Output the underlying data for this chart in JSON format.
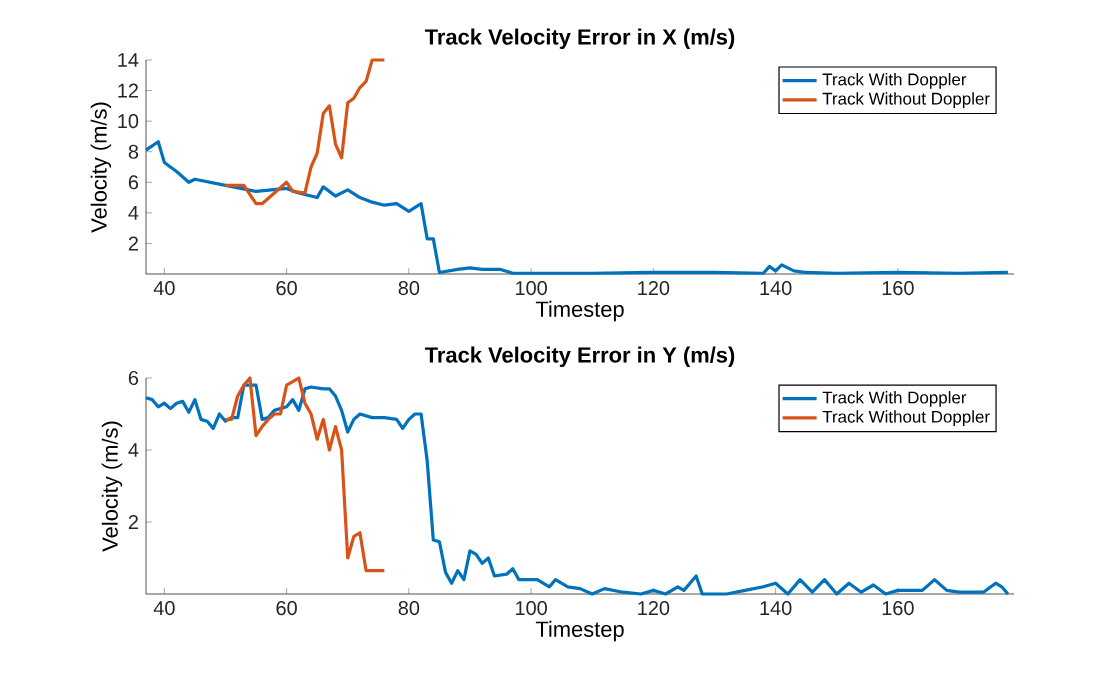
{
  "chart_data": [
    {
      "type": "line",
      "title": "Track Velocity Error in X (m/s)",
      "xlabel": "Timestep",
      "ylabel": "Velocity (m/s)",
      "xlim": [
        37,
        179
      ],
      "ylim": [
        0,
        14
      ],
      "xticks": [
        40,
        60,
        80,
        100,
        120,
        140,
        160
      ],
      "yticks": [
        2,
        4,
        6,
        8,
        10,
        12,
        14
      ],
      "legend": "top right",
      "line_style": "solid",
      "series": [
        {
          "name": "Track With Doppler",
          "color": "#0072bd",
          "x": [
            37,
            39,
            40,
            42,
            44,
            45,
            50,
            55,
            60,
            62,
            65,
            66,
            68,
            70,
            72,
            74,
            76,
            78,
            80,
            82,
            83,
            84,
            85,
            88,
            90,
            92,
            95,
            97,
            100,
            110,
            120,
            130,
            138,
            139,
            140,
            141,
            143,
            145,
            150,
            160,
            170,
            178
          ],
          "values": [
            8.1,
            8.65,
            7.3,
            6.7,
            6.0,
            6.2,
            5.8,
            5.4,
            5.6,
            5.3,
            5.0,
            5.7,
            5.1,
            5.5,
            5.0,
            4.7,
            4.5,
            4.6,
            4.1,
            4.6,
            2.3,
            2.3,
            0.1,
            0.3,
            0.4,
            0.3,
            0.3,
            0.05,
            0.05,
            0.05,
            0.1,
            0.1,
            0.05,
            0.5,
            0.2,
            0.6,
            0.2,
            0.1,
            0.05,
            0.1,
            0.05,
            0.1
          ]
        },
        {
          "name": "Track Without Doppler",
          "color": "#d95319",
          "x": [
            50,
            53,
            55,
            56,
            58,
            60,
            61,
            63,
            64,
            65,
            66,
            67,
            68,
            69,
            70,
            71,
            72,
            73,
            74,
            76
          ],
          "values": [
            5.8,
            5.8,
            4.6,
            4.6,
            5.3,
            6.0,
            5.4,
            5.3,
            7.0,
            7.9,
            10.5,
            11.0,
            8.5,
            7.6,
            11.2,
            11.5,
            12.2,
            12.6,
            14,
            14
          ]
        }
      ]
    },
    {
      "type": "line",
      "title": "Track Velocity Error in Y (m/s)",
      "xlabel": "Timestep",
      "ylabel": "Velocity (m/s)",
      "xlim": [
        37,
        179
      ],
      "ylim": [
        0,
        6
      ],
      "xticks": [
        40,
        60,
        80,
        100,
        120,
        140,
        160
      ],
      "yticks": [
        2,
        4,
        6
      ],
      "legend": "top right",
      "line_style": "solid",
      "series": [
        {
          "name": "Track With Doppler",
          "color": "#0072bd",
          "x": [
            37,
            38,
            39,
            40,
            41,
            42,
            43,
            44,
            45,
            46,
            47,
            48,
            49,
            50,
            51,
            52,
            53,
            55,
            56,
            57,
            58,
            60,
            61,
            62,
            63,
            64,
            66,
            67,
            68,
            69,
            70,
            71,
            72,
            74,
            76,
            78,
            79,
            80,
            81,
            82,
            83,
            84,
            85,
            86,
            87,
            88,
            89,
            90,
            91,
            92,
            93,
            94,
            96,
            97,
            98,
            100,
            101,
            103,
            104,
            106,
            108,
            110,
            112,
            115,
            118,
            120,
            122,
            124,
            125,
            127,
            128,
            132,
            135,
            138,
            140,
            142,
            144,
            146,
            148,
            150,
            152,
            154,
            156,
            158,
            160,
            164,
            166,
            168,
            170,
            174,
            176,
            177,
            178
          ],
          "values": [
            5.45,
            5.4,
            5.2,
            5.3,
            5.15,
            5.3,
            5.35,
            5.05,
            5.4,
            4.85,
            4.8,
            4.6,
            5.0,
            4.8,
            4.9,
            4.9,
            5.8,
            5.8,
            4.85,
            4.9,
            5.1,
            5.2,
            5.4,
            5.1,
            5.7,
            5.75,
            5.7,
            5.7,
            5.5,
            5.1,
            4.5,
            4.85,
            5.0,
            4.9,
            4.9,
            4.85,
            4.6,
            4.85,
            5.0,
            5.0,
            3.7,
            1.5,
            1.45,
            0.6,
            0.3,
            0.65,
            0.4,
            1.2,
            1.1,
            0.85,
            1.0,
            0.5,
            0.55,
            0.7,
            0.4,
            0.4,
            0.4,
            0.2,
            0.4,
            0.2,
            0.15,
            0.0,
            0.15,
            0.05,
            0.0,
            0.1,
            0.0,
            0.2,
            0.1,
            0.5,
            0.0,
            0.0,
            0.1,
            0.2,
            0.3,
            0.0,
            0.4,
            0.05,
            0.4,
            0.0,
            0.3,
            0.05,
            0.25,
            0.0,
            0.1,
            0.1,
            0.4,
            0.1,
            0.05,
            0.05,
            0.3,
            0.2,
            0.0
          ]
        },
        {
          "name": "Track Without Doppler",
          "color": "#d95319",
          "x": [
            50,
            51,
            52,
            53,
            54,
            55,
            56,
            57,
            58,
            59,
            60,
            61,
            62,
            63,
            64,
            65,
            66,
            67,
            68,
            69,
            70,
            71,
            72,
            73,
            74,
            76
          ],
          "values": [
            4.85,
            4.85,
            5.5,
            5.8,
            6.0,
            4.4,
            4.65,
            4.85,
            5.0,
            5.0,
            5.8,
            5.9,
            6.0,
            5.3,
            5.0,
            4.3,
            4.85,
            4.0,
            4.65,
            4.0,
            1.0,
            1.6,
            1.7,
            0.65,
            0.65,
            0.65
          ]
        }
      ]
    }
  ]
}
